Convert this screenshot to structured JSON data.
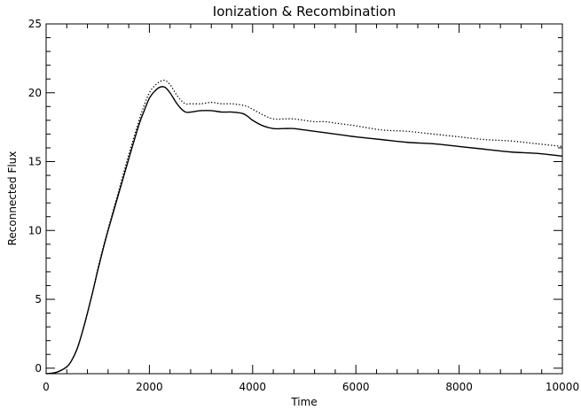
{
  "chart_data": {
    "type": "line",
    "title": "Ionization & Recombination",
    "xlabel": "Time",
    "ylabel": "Reconnected Flux",
    "xlim": [
      0,
      10000
    ],
    "ylim": [
      -0.4,
      25
    ],
    "xticks": [
      0,
      2000,
      4000,
      6000,
      8000,
      10000
    ],
    "yticks": [
      0,
      5,
      10,
      15,
      20,
      25
    ],
    "x_minor_step": 400,
    "y_minor_step": 1,
    "grid": false,
    "legend": "none",
    "series": [
      {
        "line_style": "solid",
        "color": "#000000",
        "x": [
          0,
          200,
          400,
          500,
          600,
          700,
          800,
          900,
          1000,
          1100,
          1200,
          1400,
          1600,
          1800,
          1900,
          2000,
          2100,
          2200,
          2300,
          2400,
          2500,
          2600,
          2700,
          2800,
          3000,
          3200,
          3400,
          3600,
          3800,
          3900,
          4000,
          4200,
          4400,
          4600,
          4800,
          5000,
          5200,
          5400,
          5600,
          5800,
          6000,
          6500,
          7000,
          7500,
          8000,
          8500,
          9000,
          9500,
          10000
        ],
        "y": [
          -0.4,
          -0.3,
          0.1,
          0.6,
          1.4,
          2.6,
          4.0,
          5.5,
          7.1,
          8.6,
          10.0,
          12.6,
          15.2,
          17.7,
          18.7,
          19.6,
          20.1,
          20.4,
          20.4,
          20.0,
          19.4,
          18.9,
          18.6,
          18.6,
          18.7,
          18.7,
          18.6,
          18.6,
          18.5,
          18.3,
          18.0,
          17.6,
          17.4,
          17.4,
          17.4,
          17.3,
          17.2,
          17.1,
          17.0,
          16.9,
          16.8,
          16.6,
          16.4,
          16.3,
          16.1,
          15.9,
          15.7,
          15.6,
          15.4
        ]
      },
      {
        "line_style": "dotted",
        "color": "#000000",
        "x": [
          0,
          200,
          400,
          500,
          600,
          700,
          800,
          900,
          1000,
          1100,
          1200,
          1400,
          1600,
          1800,
          1900,
          2000,
          2100,
          2200,
          2300,
          2400,
          2500,
          2600,
          2700,
          2800,
          3000,
          3200,
          3400,
          3600,
          3800,
          3900,
          4000,
          4200,
          4400,
          4600,
          4800,
          5000,
          5200,
          5400,
          5600,
          5800,
          6000,
          6500,
          7000,
          7500,
          8000,
          8500,
          9000,
          9500,
          10000
        ],
        "y": [
          -0.4,
          -0.3,
          0.1,
          0.6,
          1.4,
          2.6,
          4.0,
          5.5,
          7.2,
          8.7,
          10.1,
          12.8,
          15.5,
          18.0,
          19.1,
          20.0,
          20.5,
          20.8,
          20.9,
          20.6,
          20.0,
          19.5,
          19.2,
          19.2,
          19.2,
          19.3,
          19.2,
          19.2,
          19.1,
          19.0,
          18.8,
          18.4,
          18.1,
          18.1,
          18.1,
          18.0,
          17.9,
          17.9,
          17.8,
          17.7,
          17.6,
          17.3,
          17.2,
          17.0,
          16.8,
          16.6,
          16.5,
          16.3,
          16.1
        ]
      }
    ]
  }
}
